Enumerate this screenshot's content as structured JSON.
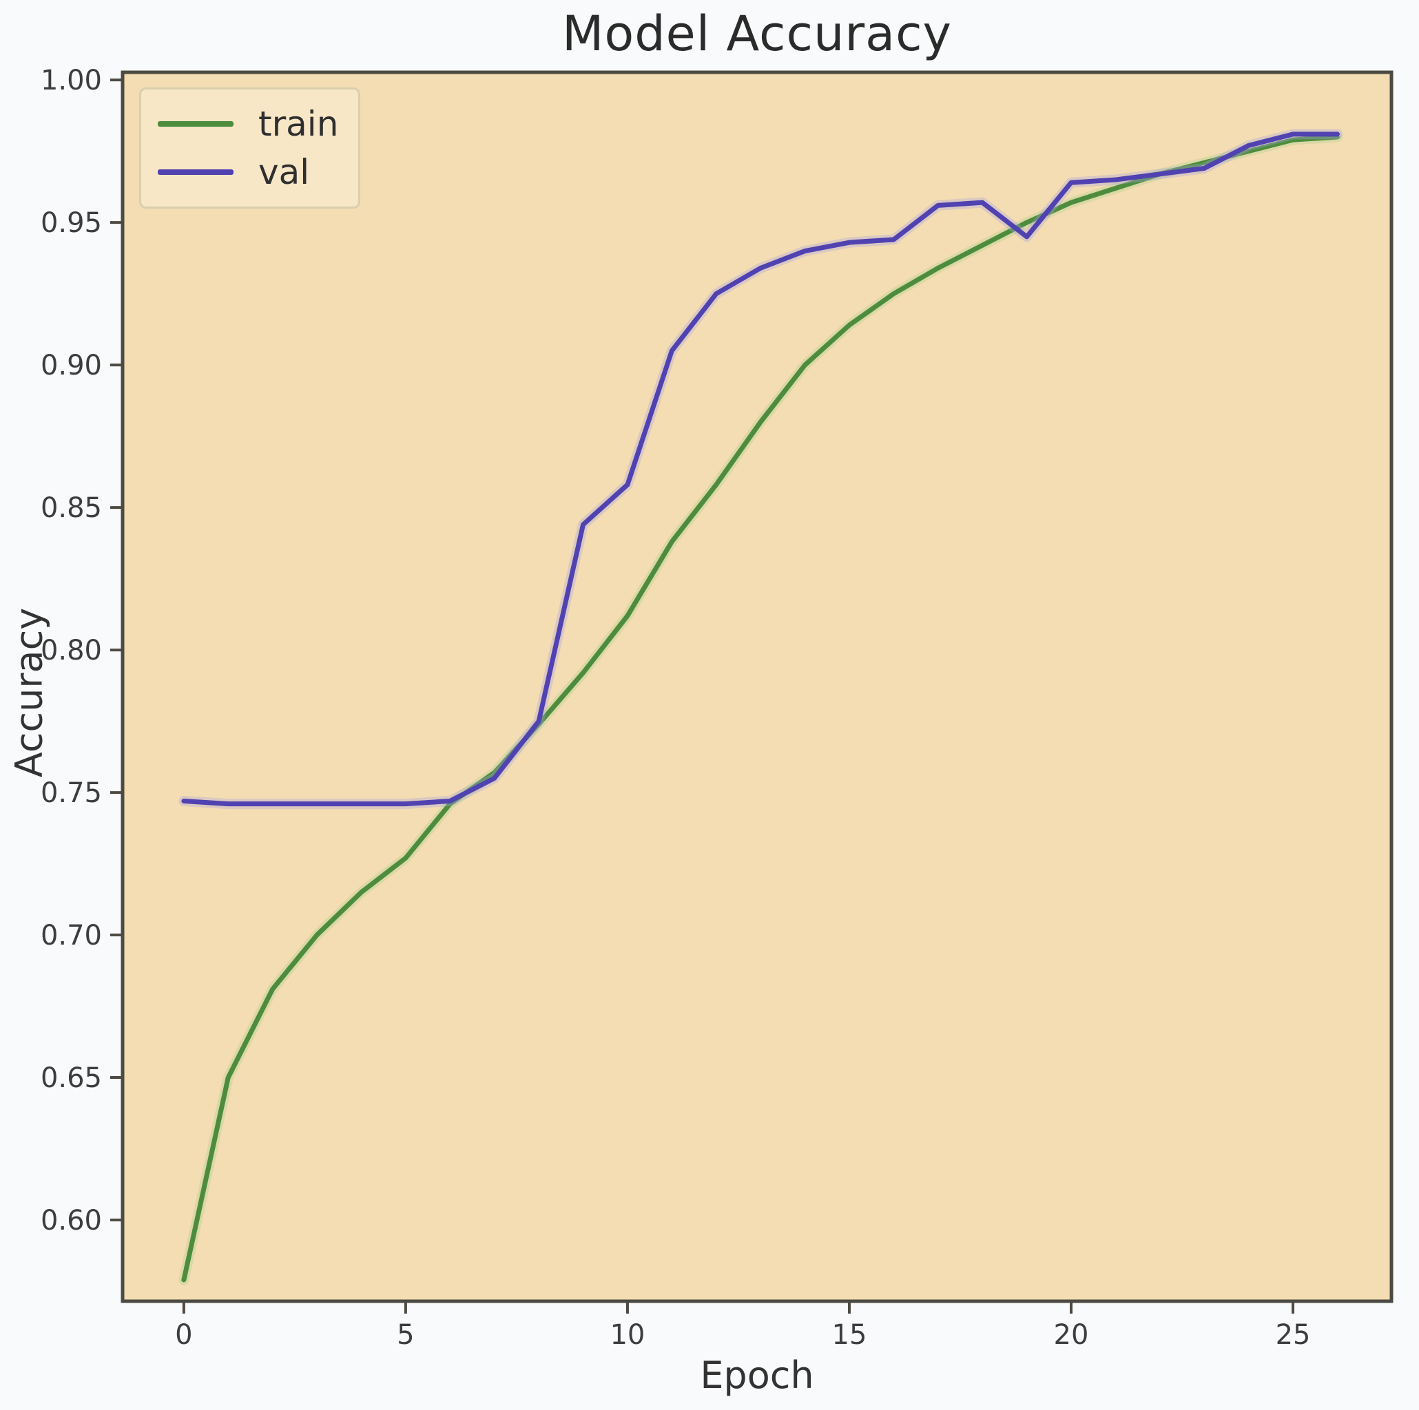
{
  "chart_data": {
    "type": "line",
    "title": "Model Accuracy",
    "xlabel": "Epoch",
    "ylabel": "Accuracy",
    "x": [
      0,
      1,
      2,
      3,
      4,
      5,
      6,
      7,
      8,
      9,
      10,
      11,
      12,
      13,
      14,
      15,
      16,
      17,
      18,
      19,
      20,
      21,
      22,
      23,
      24,
      25,
      26
    ],
    "series": [
      {
        "name": "train",
        "color": "#4d8c3d",
        "halo_color": "#a9cf8c",
        "values": [
          0.579,
          0.65,
          0.681,
          0.7,
          0.715,
          0.727,
          0.746,
          0.757,
          0.774,
          0.792,
          0.812,
          0.838,
          0.858,
          0.88,
          0.9,
          0.914,
          0.925,
          0.934,
          0.942,
          0.95,
          0.957,
          0.962,
          0.967,
          0.971,
          0.975,
          0.979,
          0.98
        ]
      },
      {
        "name": "val",
        "color": "#5042b0",
        "halo_color": "#aaa1e0",
        "values": [
          0.747,
          0.746,
          0.746,
          0.746,
          0.746,
          0.746,
          0.747,
          0.755,
          0.775,
          0.844,
          0.858,
          0.905,
          0.925,
          0.934,
          0.94,
          0.943,
          0.944,
          0.956,
          0.957,
          0.945,
          0.964,
          0.965,
          0.967,
          0.969,
          0.977,
          0.981,
          0.981
        ]
      }
    ],
    "xlim": [
      -1.38,
      27.22
    ],
    "ylim": [
      0.5715,
      1.0027
    ],
    "xticks": [
      0,
      5,
      10,
      15,
      20,
      25
    ],
    "xtick_labels": [
      "0",
      "5",
      "10",
      "15",
      "20",
      "25"
    ],
    "yticks": [
      0.6,
      0.65,
      0.7,
      0.75,
      0.8,
      0.85,
      0.9,
      0.95,
      1.0
    ],
    "ytick_labels": [
      "0.60",
      "0.65",
      "0.70",
      "0.75",
      "0.80",
      "0.85",
      "0.90",
      "0.95",
      "1.00"
    ],
    "grid": false,
    "legend_position": "upper left",
    "legend_entries": [
      "train",
      "val"
    ],
    "colors": {
      "axes_background": "#f4ddb2",
      "figure_background": "#f9fafb",
      "spine": "#4c4a42",
      "tick": "#4c4a42",
      "tick_label": "#3d3d3d",
      "title": "#2b2b2b",
      "axis_label": "#333333",
      "legend_background": "#f7e7c6",
      "legend_border": "#d9cfae"
    }
  }
}
